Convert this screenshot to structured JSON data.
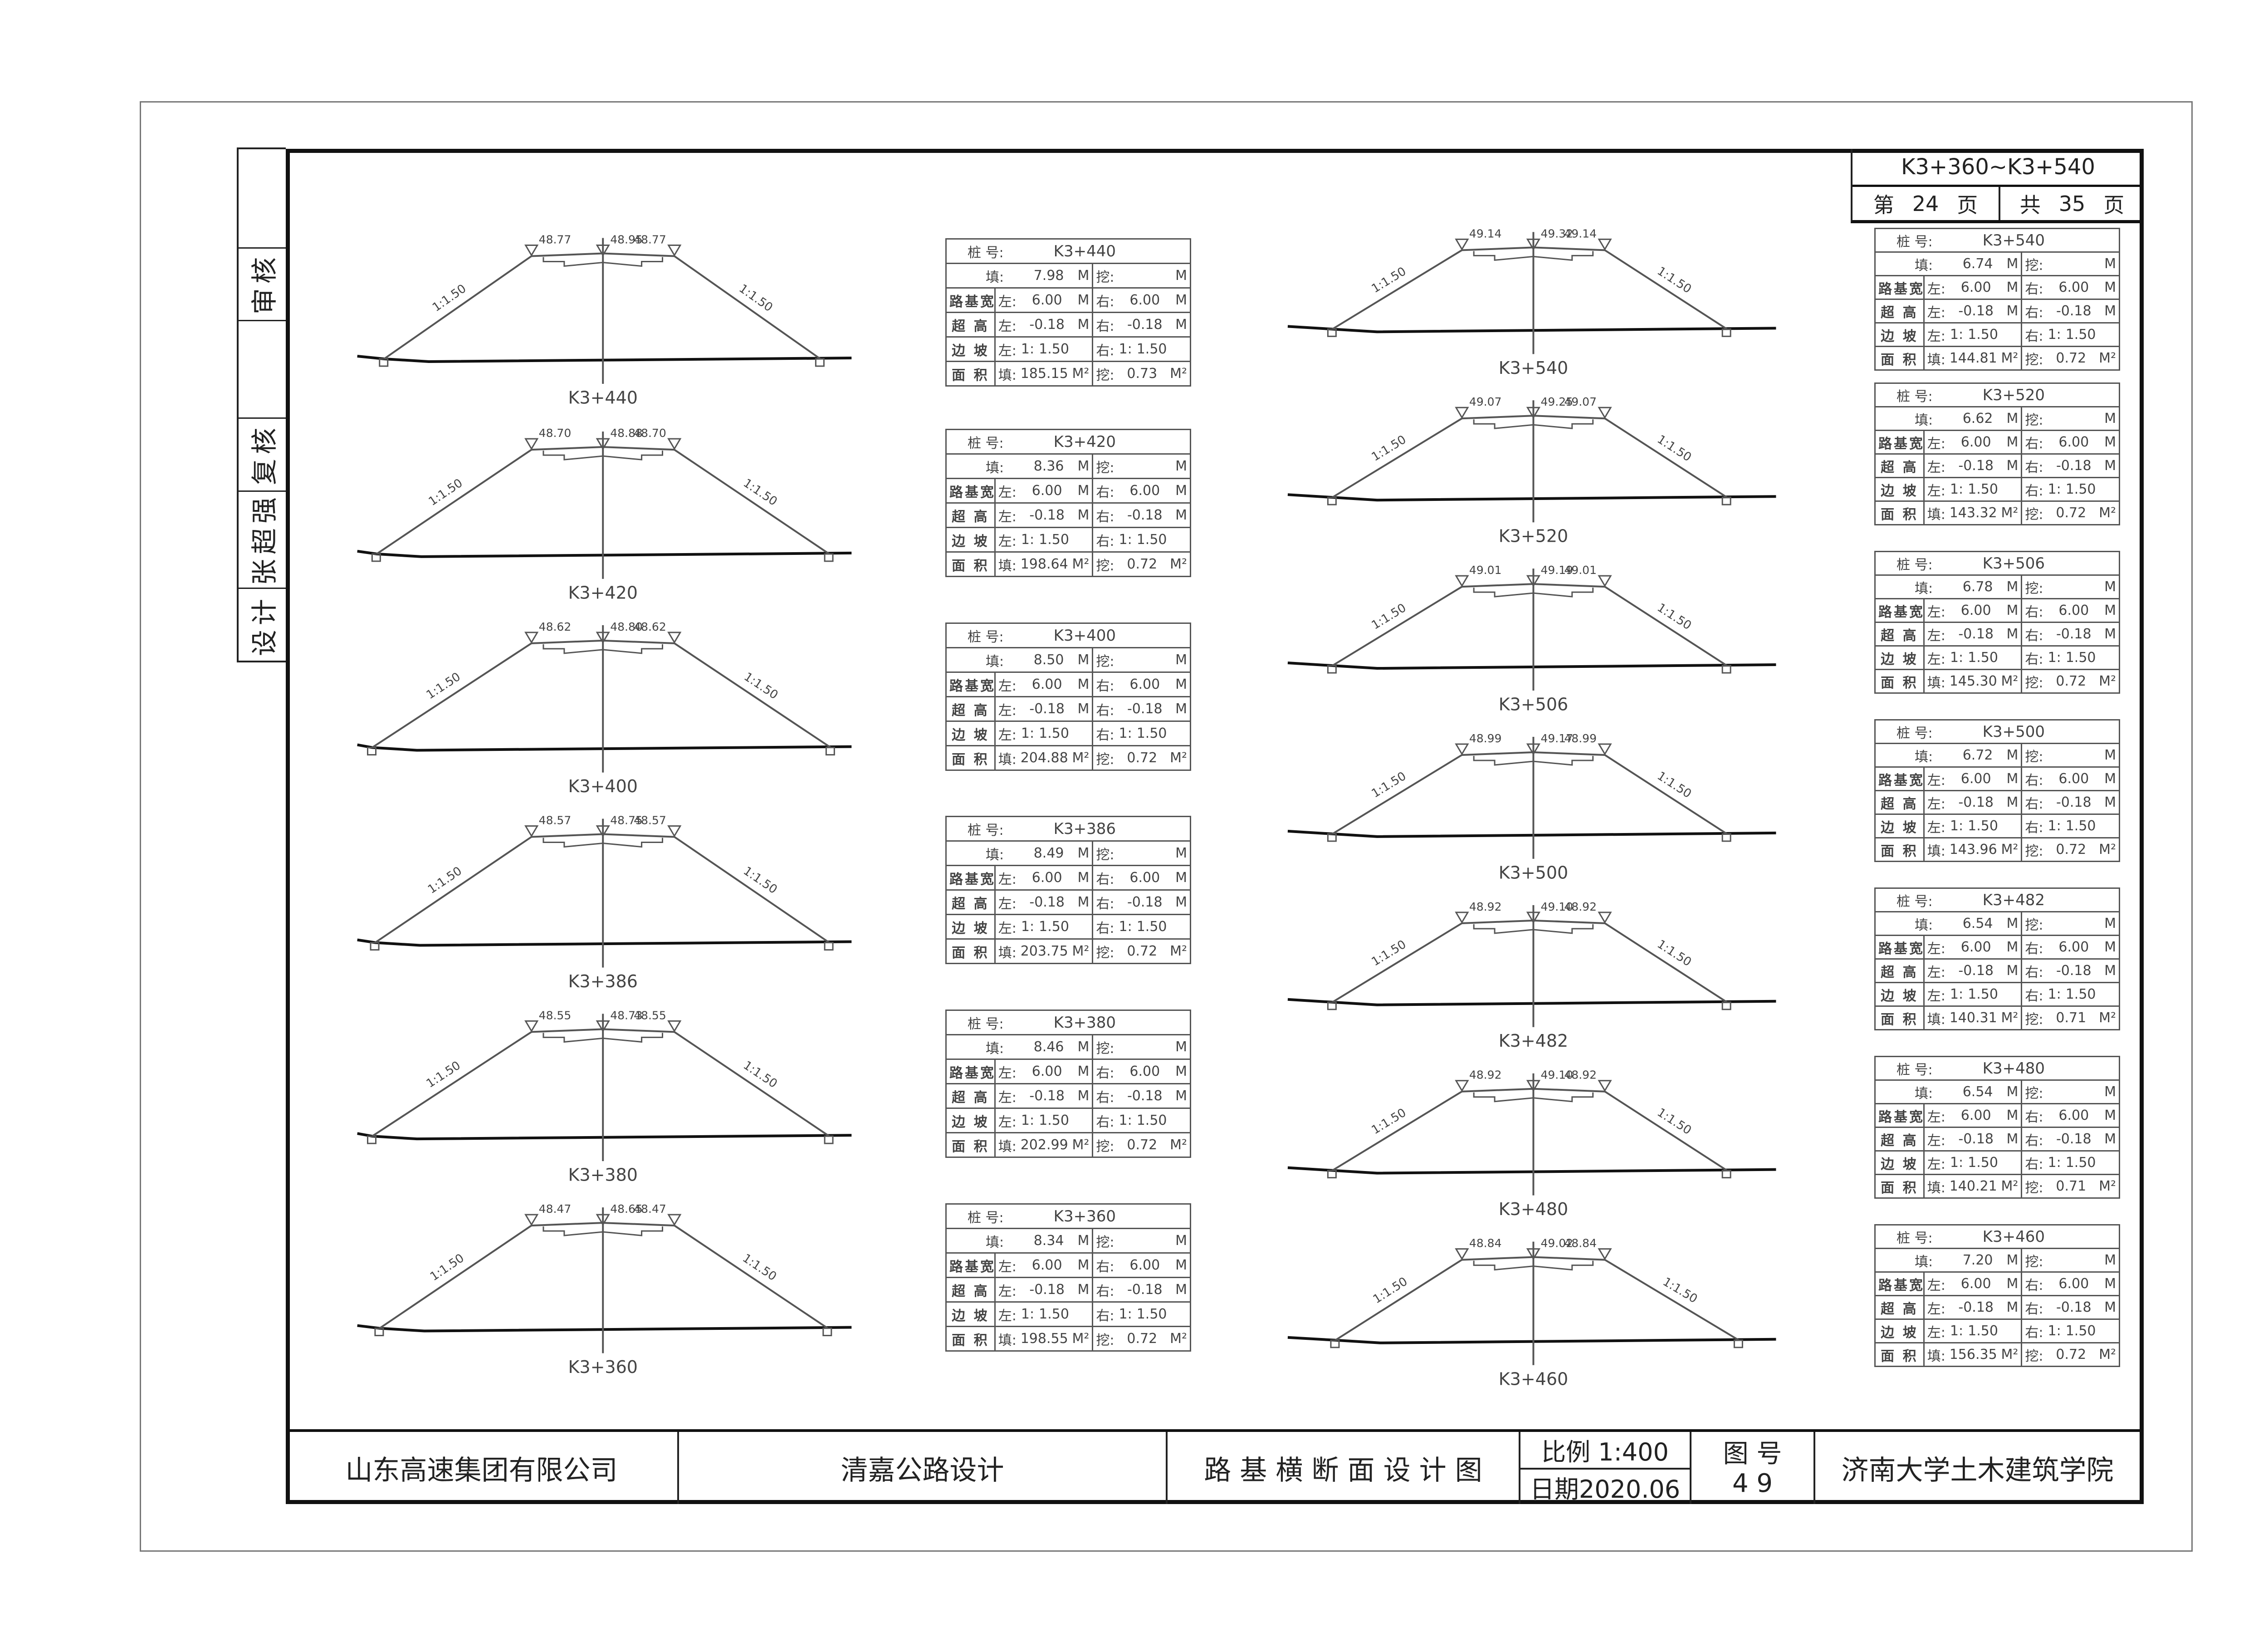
{
  "sidebar": {
    "cells": [
      "",
      "审核",
      "",
      "复核",
      "张超强",
      "设计"
    ]
  },
  "header": {
    "range": "K3+360~K3+540",
    "page_prefix": "第",
    "page_current": "24",
    "page_suffix": "页",
    "total_prefix": "共",
    "page_total": "35",
    "total_suffix": "页"
  },
  "title_block": {
    "client": "山东高速集团有限公司",
    "project": "清嘉公路设计",
    "drawing_title": "路 基 横 断 面 设 计 图",
    "scale": "比例 1:400",
    "date": "日期2020.06",
    "drawing_no_label": "图 号",
    "drawing_no": "4 9",
    "institution": "济南大学土木建筑学院"
  },
  "table_labels": {
    "station": "桩  号:",
    "fill": "填:",
    "cut": "挖:",
    "subgrade_width": "路基宽",
    "superelevation": "超 高",
    "side_slope": "边 坡",
    "area": "面 积",
    "left": "左:",
    "right": "右:",
    "unit_m": "M",
    "unit_m2": "M²",
    "slope_prefix": "1:"
  },
  "slope_label": "1:1.50",
  "sections_left": [
    {
      "station": "K3+440",
      "elev_l": "48.77",
      "elev_c": "48.95",
      "elev_r": "48.77",
      "fill": "7.98",
      "cut": "",
      "width_l": "6.00",
      "width_r": "6.00",
      "super_l": "-0.18",
      "super_r": "-0.18",
      "slope_l": "1.50",
      "slope_r": "1.50",
      "area_fill": "185.15",
      "area_cut": "0.73"
    },
    {
      "station": "K3+420",
      "elev_l": "48.70",
      "elev_c": "48.88",
      "elev_r": "48.70",
      "fill": "8.36",
      "cut": "",
      "width_l": "6.00",
      "width_r": "6.00",
      "super_l": "-0.18",
      "super_r": "-0.18",
      "slope_l": "1.50",
      "slope_r": "1.50",
      "area_fill": "198.64",
      "area_cut": "0.72"
    },
    {
      "station": "K3+400",
      "elev_l": "48.62",
      "elev_c": "48.80",
      "elev_r": "48.62",
      "fill": "8.50",
      "cut": "",
      "width_l": "6.00",
      "width_r": "6.00",
      "super_l": "-0.18",
      "super_r": "-0.18",
      "slope_l": "1.50",
      "slope_r": "1.50",
      "area_fill": "204.88",
      "area_cut": "0.72"
    },
    {
      "station": "K3+386",
      "elev_l": "48.57",
      "elev_c": "48.75",
      "elev_r": "48.57",
      "fill": "8.49",
      "cut": "",
      "width_l": "6.00",
      "width_r": "6.00",
      "super_l": "-0.18",
      "super_r": "-0.18",
      "slope_l": "1.50",
      "slope_r": "1.50",
      "area_fill": "203.75",
      "area_cut": "0.72"
    },
    {
      "station": "K3+380",
      "elev_l": "48.55",
      "elev_c": "48.73",
      "elev_r": "48.55",
      "fill": "8.46",
      "cut": "",
      "width_l": "6.00",
      "width_r": "6.00",
      "super_l": "-0.18",
      "super_r": "-0.18",
      "slope_l": "1.50",
      "slope_r": "1.50",
      "area_fill": "202.99",
      "area_cut": "0.72"
    },
    {
      "station": "K3+360",
      "elev_l": "48.47",
      "elev_c": "48.65",
      "elev_r": "48.47",
      "fill": "8.34",
      "cut": "",
      "width_l": "6.00",
      "width_r": "6.00",
      "super_l": "-0.18",
      "super_r": "-0.18",
      "slope_l": "1.50",
      "slope_r": "1.50",
      "area_fill": "198.55",
      "area_cut": "0.72"
    }
  ],
  "sections_right": [
    {
      "station": "K3+540",
      "elev_l": "49.14",
      "elev_c": "49.32",
      "elev_r": "49.14",
      "fill": "6.74",
      "cut": "",
      "width_l": "6.00",
      "width_r": "6.00",
      "super_l": "-0.18",
      "super_r": "-0.18",
      "slope_l": "1.50",
      "slope_r": "1.50",
      "area_fill": "144.81",
      "area_cut": "0.72"
    },
    {
      "station": "K3+520",
      "elev_l": "49.07",
      "elev_c": "49.25",
      "elev_r": "49.07",
      "fill": "6.62",
      "cut": "",
      "width_l": "6.00",
      "width_r": "6.00",
      "super_l": "-0.18",
      "super_r": "-0.18",
      "slope_l": "1.50",
      "slope_r": "1.50",
      "area_fill": "143.32",
      "area_cut": "0.72"
    },
    {
      "station": "K3+506",
      "elev_l": "49.01",
      "elev_c": "49.19",
      "elev_r": "49.01",
      "fill": "6.78",
      "cut": "",
      "width_l": "6.00",
      "width_r": "6.00",
      "super_l": "-0.18",
      "super_r": "-0.18",
      "slope_l": "1.50",
      "slope_r": "1.50",
      "area_fill": "145.30",
      "area_cut": "0.72"
    },
    {
      "station": "K3+500",
      "elev_l": "48.99",
      "elev_c": "49.17",
      "elev_r": "48.99",
      "fill": "6.72",
      "cut": "",
      "width_l": "6.00",
      "width_r": "6.00",
      "super_l": "-0.18",
      "super_r": "-0.18",
      "slope_l": "1.50",
      "slope_r": "1.50",
      "area_fill": "143.96",
      "area_cut": "0.72"
    },
    {
      "station": "K3+482",
      "elev_l": "48.92",
      "elev_c": "49.10",
      "elev_r": "48.92",
      "fill": "6.54",
      "cut": "",
      "width_l": "6.00",
      "width_r": "6.00",
      "super_l": "-0.18",
      "super_r": "-0.18",
      "slope_l": "1.50",
      "slope_r": "1.50",
      "area_fill": "140.31",
      "area_cut": "0.71"
    },
    {
      "station": "K3+480",
      "elev_l": "48.92",
      "elev_c": "49.10",
      "elev_r": "48.92",
      "fill": "6.54",
      "cut": "",
      "width_l": "6.00",
      "width_r": "6.00",
      "super_l": "-0.18",
      "super_r": "-0.18",
      "slope_l": "1.50",
      "slope_r": "1.50",
      "area_fill": "140.21",
      "area_cut": "0.71"
    },
    {
      "station": "K3+460",
      "elev_l": "48.84",
      "elev_c": "49.02",
      "elev_r": "48.84",
      "fill": "7.20",
      "cut": "",
      "width_l": "6.00",
      "width_r": "6.00",
      "super_l": "-0.18",
      "super_r": "-0.18",
      "slope_l": "1.50",
      "slope_r": "1.50",
      "area_fill": "156.35",
      "area_cut": "0.72"
    }
  ]
}
